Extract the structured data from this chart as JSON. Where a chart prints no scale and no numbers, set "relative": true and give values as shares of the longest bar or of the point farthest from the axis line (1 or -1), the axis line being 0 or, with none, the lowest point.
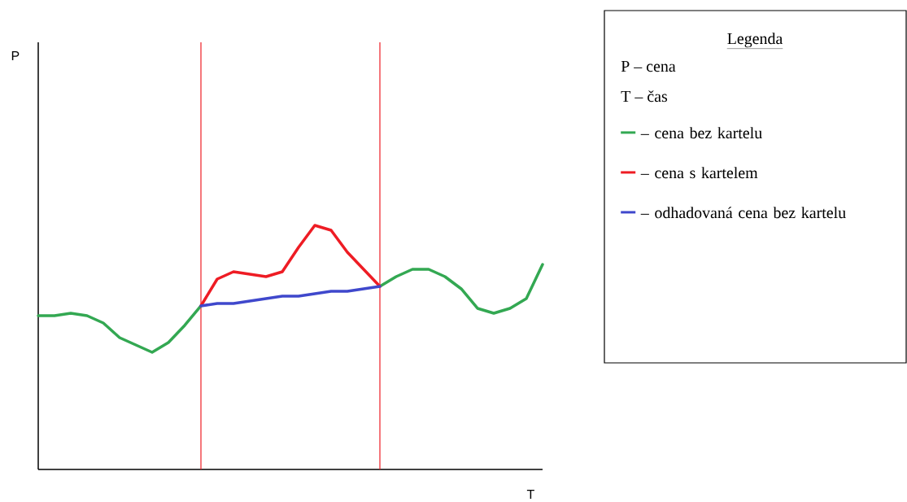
{
  "chart_data": {
    "type": "line",
    "relative": true,
    "xlabel": "T",
    "legend_title": "Legenda",
    "legend": "right",
    "line_style": "solid",
    "annotations": [
      "P",
      "P – cena",
      "T – čas"
    ],
    "categories": [
      null,
      null,
      null,
      null,
      null,
      null,
      null,
      null,
      null,
      null,
      null,
      null,
      null,
      null,
      null,
      null,
      null,
      null,
      null,
      null,
      null,
      null,
      null,
      null,
      null,
      null,
      null,
      null,
      null,
      null,
      null,
      null
    ],
    "series": [
      {
        "name": "–  cena bez kartelu",
        "color": "#33a852",
        "values": [
          0.63,
          0.63,
          0.64,
          0.63,
          0.6,
          0.54,
          0.51,
          0.48,
          0.52,
          0.59,
          0.67,
          null,
          null,
          null,
          null,
          null,
          null,
          null,
          null,
          null,
          null,
          0.75,
          0.79,
          0.82,
          0.82,
          0.79,
          0.74,
          0.66,
          0.64,
          0.66,
          0.7,
          0.84
        ]
      },
      {
        "name": "–  cena s kartelem",
        "color": "#ee1c24",
        "values": [
          null,
          null,
          null,
          null,
          null,
          null,
          null,
          null,
          null,
          null,
          0.67,
          0.78,
          0.81,
          0.8,
          0.79,
          0.81,
          0.91,
          1,
          0.98,
          0.89,
          0.82,
          0.75,
          null,
          null,
          null,
          null,
          null,
          null,
          null,
          null,
          null,
          null
        ]
      },
      {
        "name": "– odhadovaná cena bez kartelu",
        "color": "#3f48cc",
        "values": [
          null,
          null,
          null,
          null,
          null,
          null,
          null,
          null,
          null,
          null,
          0.67,
          0.68,
          0.68,
          0.69,
          0.7,
          0.71,
          0.71,
          0.72,
          0.73,
          0.73,
          0.74,
          0.75,
          null,
          null,
          null,
          null,
          null,
          null,
          null,
          null,
          null,
          null
        ]
      }
    ]
  }
}
